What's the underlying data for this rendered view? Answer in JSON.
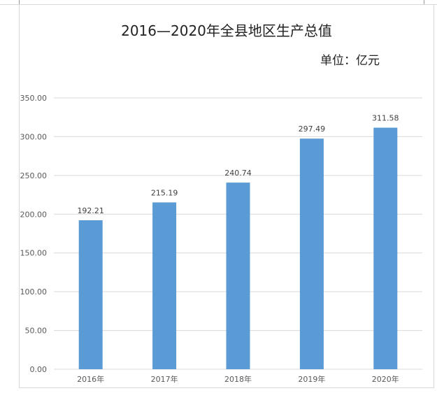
{
  "chart_data": {
    "type": "bar",
    "title": "2016—2020年全县地区生产总值",
    "unit_label": "单位：亿元",
    "categories": [
      "2016年",
      "2017年",
      "2018年",
      "2019年",
      "2020年"
    ],
    "values": [
      192.21,
      215.19,
      240.74,
      297.49,
      311.58
    ],
    "value_labels": [
      "192.21",
      "215.19",
      "240.74",
      "297.49",
      "311.58"
    ],
    "ylim": [
      0,
      350
    ],
    "yticks": [
      "0.00",
      "50.00",
      "100.00",
      "150.00",
      "200.00",
      "250.00",
      "300.00",
      "350.00"
    ],
    "grid": true,
    "legend": "none",
    "bar_color": "#5b9bd5",
    "grid_color": "#d9d9d9",
    "axis_text_color": "#595959"
  }
}
